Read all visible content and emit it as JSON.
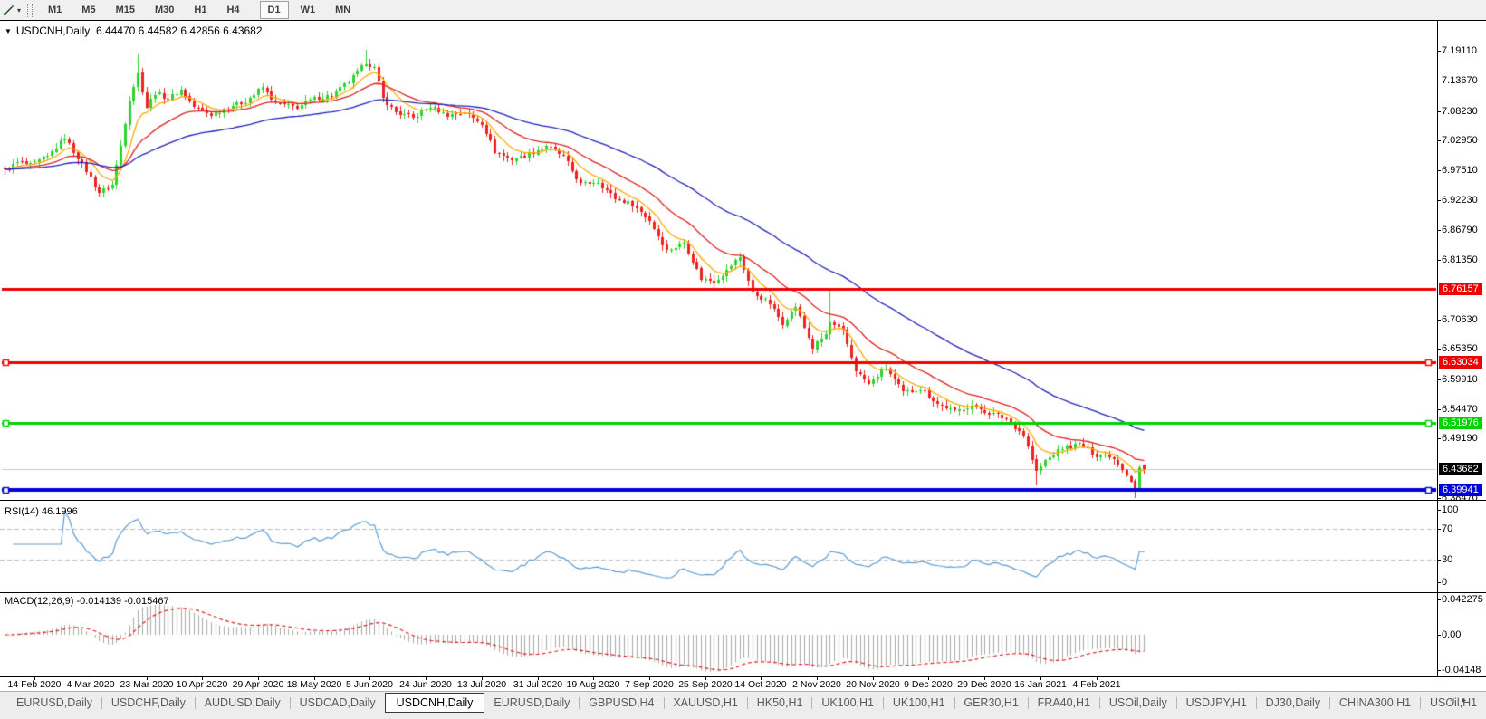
{
  "toolbar": {
    "timeframes": [
      "M1",
      "M5",
      "M15",
      "M30",
      "H1",
      "H4",
      "D1",
      "W1",
      "MN"
    ],
    "active_timeframe": "D1",
    "dropdown_caret": "▾"
  },
  "chart": {
    "collapse_icon": "▼",
    "symbol": "USDCNH,Daily",
    "ohlc": {
      "open": "6.44470",
      "high": "6.44582",
      "low": "6.42856",
      "close": "6.43682"
    },
    "price_axis_ticks": [
      "7.19110",
      "7.13670",
      "7.08230",
      "7.02950",
      "6.97510",
      "6.92230",
      "6.86790",
      "6.81350",
      "6.70630",
      "6.65350",
      "6.59910",
      "6.54470",
      "6.49190",
      "6.38470"
    ],
    "hlines": [
      {
        "price": 6.76157,
        "label": "6.76157",
        "color": "#ee0000",
        "thickness": 3,
        "selected": false
      },
      {
        "price": 6.63034,
        "label": "6.63034",
        "color": "#ee0000",
        "thickness": 3,
        "selected": true
      },
      {
        "price": 6.51976,
        "label": "6.51976",
        "color": "#00d300",
        "thickness": 3,
        "selected": true
      },
      {
        "price": 6.39941,
        "label": "6.39941",
        "color": "#0000d8",
        "thickness": 4,
        "selected": true
      }
    ],
    "current_price": {
      "price": 6.43682,
      "label": "6.43682",
      "line_color": "#c8c8c8",
      "badge_bg": "#000000"
    }
  },
  "rsi": {
    "label": "RSI(14) 46.1996",
    "ticks": [
      "100",
      "70",
      "30",
      "0"
    ],
    "level_lines": [
      70,
      30
    ],
    "line_color": "#5b9bd5"
  },
  "macd": {
    "label": "MACD(12,26,9) -0.014139 -0.015467",
    "ticks": [
      "0.042275",
      "0.00",
      "-0.04148"
    ],
    "hist_color": "#a8a8a8",
    "signal_color": "#dd2222"
  },
  "date_axis": {
    "labels": [
      "14 Feb 2020",
      "4 Mar 2020",
      "23 Mar 2020",
      "10 Apr 2020",
      "29 Apr 2020",
      "18 May 2020",
      "5 Jun 2020",
      "24 Jun 2020",
      "13 Jul 2020",
      "31 Jul 2020",
      "19 Aug 2020",
      "7 Sep 2020",
      "25 Sep 2020",
      "14 Oct 2020",
      "2 Nov 2020",
      "20 Nov 2020",
      "9 Dec 2020",
      "29 Dec 2020",
      "16 Jan 2021",
      "4 Feb 2021"
    ]
  },
  "tabs": {
    "items": [
      "EURUSD,Daily",
      "USDCHF,Daily",
      "AUDUSD,Daily",
      "USDCAD,Daily",
      "USDCNH,Daily",
      "EURUSD,Daily",
      "GBPUSD,H4",
      "XAUUSD,H1",
      "HK50,H1",
      "UK100,H1",
      "UK100,H1",
      "GER30,H1",
      "FRA40,H1",
      "USOil,Daily",
      "USDJPY,H1",
      "DJ30,Daily",
      "CHINA300,H1",
      "USOil,H1"
    ],
    "active_index": 4,
    "scroll_left_icon": "◂",
    "scroll_right_icon": "▸"
  },
  "chart_data": [
    {
      "type": "candlestick",
      "title": "USDCNH Daily",
      "ylim": [
        6.3798,
        7.2466
      ],
      "y_ticks": [
        7.1911,
        7.1367,
        7.0823,
        7.0295,
        6.9751,
        6.9223,
        6.8679,
        6.8135,
        6.7063,
        6.6535,
        6.5991,
        6.5447,
        6.4919,
        6.3847
      ],
      "x_tick_dates": [
        "14 Feb 2020",
        "4 Mar 2020",
        "23 Mar 2020",
        "10 Apr 2020",
        "29 Apr 2020",
        "18 May 2020",
        "5 Jun 2020",
        "24 Jun 2020",
        "13 Jul 2020",
        "31 Jul 2020",
        "19 Aug 2020",
        "7 Sep 2020",
        "25 Sep 2020",
        "14 Oct 2020",
        "2 Nov 2020",
        "20 Nov 2020",
        "9 Dec 2020",
        "29 Dec 2020",
        "16 Jan 2021",
        "4 Feb 2021"
      ],
      "bars": 266,
      "close_path_anchors": [
        [
          0,
          6.975
        ],
        [
          3,
          6.99
        ],
        [
          6,
          6.985
        ],
        [
          10,
          7.0
        ],
        [
          14,
          7.035
        ],
        [
          16,
          7.01
        ],
        [
          19,
          6.975
        ],
        [
          22,
          6.935
        ],
        [
          25,
          6.95
        ],
        [
          27,
          7.02
        ],
        [
          29,
          7.105
        ],
        [
          31,
          7.15
        ],
        [
          33,
          7.09
        ],
        [
          35,
          7.115
        ],
        [
          38,
          7.105
        ],
        [
          41,
          7.12
        ],
        [
          44,
          7.09
        ],
        [
          48,
          7.075
        ],
        [
          52,
          7.09
        ],
        [
          56,
          7.1
        ],
        [
          60,
          7.125
        ],
        [
          63,
          7.095
        ],
        [
          68,
          7.09
        ],
        [
          72,
          7.105
        ],
        [
          76,
          7.11
        ],
        [
          80,
          7.135
        ],
        [
          84,
          7.17
        ],
        [
          86,
          7.16
        ],
        [
          88,
          7.105
        ],
        [
          91,
          7.08
        ],
        [
          95,
          7.07
        ],
        [
          99,
          7.09
        ],
        [
          103,
          7.075
        ],
        [
          107,
          7.08
        ],
        [
          111,
          7.06
        ],
        [
          114,
          7.01
        ],
        [
          118,
          6.995
        ],
        [
          122,
          7.005
        ],
        [
          126,
          7.02
        ],
        [
          130,
          7.0
        ],
        [
          134,
          6.95
        ],
        [
          138,
          6.955
        ],
        [
          142,
          6.925
        ],
        [
          146,
          6.915
        ],
        [
          150,
          6.885
        ],
        [
          154,
          6.83
        ],
        [
          158,
          6.845
        ],
        [
          162,
          6.78
        ],
        [
          165,
          6.775
        ],
        [
          168,
          6.795
        ],
        [
          171,
          6.82
        ],
        [
          174,
          6.755
        ],
        [
          178,
          6.735
        ],
        [
          181,
          6.7
        ],
        [
          184,
          6.73
        ],
        [
          188,
          6.655
        ],
        [
          191,
          6.68
        ],
        [
          192,
          6.7
        ],
        [
          195,
          6.685
        ],
        [
          198,
          6.615
        ],
        [
          201,
          6.59
        ],
        [
          205,
          6.62
        ],
        [
          209,
          6.575
        ],
        [
          213,
          6.582
        ],
        [
          217,
          6.555
        ],
        [
          221,
          6.54
        ],
        [
          225,
          6.552
        ],
        [
          229,
          6.538
        ],
        [
          233,
          6.528
        ],
        [
          237,
          6.498
        ],
        [
          240,
          6.432
        ],
        [
          242,
          6.452
        ],
        [
          246,
          6.475
        ],
        [
          250,
          6.482
        ],
        [
          254,
          6.462
        ],
        [
          257,
          6.462
        ],
        [
          259,
          6.448
        ],
        [
          261,
          6.428
        ],
        [
          263,
          6.403
        ],
        [
          264,
          6.441
        ],
        [
          265,
          6.43682
        ]
      ],
      "spike_highs": {
        "31": 7.185,
        "84": 7.193,
        "192": 6.763
      },
      "spike_lows": {
        "240": 6.4075,
        "263": 6.3855,
        "264": 6.398
      },
      "last_bar_ohlc": [
        6.4447,
        6.44582,
        6.42856,
        6.43682
      ],
      "up_color": "#2ed42e",
      "down_color": "#ee2222",
      "moving_averages": [
        {
          "period": 8,
          "color": "#ffaa00"
        },
        {
          "period": 21,
          "color": "#dd2222"
        },
        {
          "period": 55,
          "color": "#2222bb"
        }
      ],
      "horizontal_levels": [
        6.76157,
        6.63034,
        6.51976,
        6.39941
      ],
      "current_price": 6.43682
    },
    {
      "type": "line",
      "name": "RSI(14)",
      "current_value": 46.1996,
      "range": [
        0,
        100
      ],
      "level_lines": [
        70,
        30
      ]
    },
    {
      "type": "bar",
      "name": "MACD(12,26,9)",
      "current_values": [
        -0.014139,
        -0.015467
      ],
      "ylim": [
        -0.04148,
        0.042275
      ]
    }
  ]
}
